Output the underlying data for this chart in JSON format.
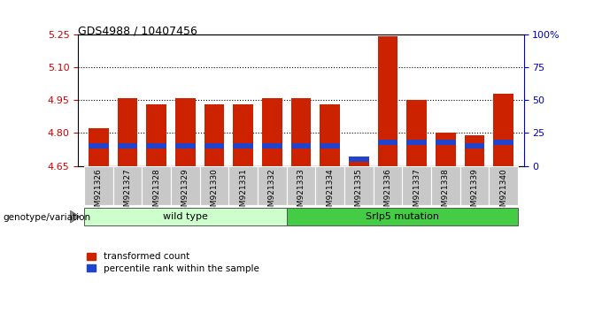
{
  "title": "GDS4988 / 10407456",
  "samples": [
    "GSM921326",
    "GSM921327",
    "GSM921328",
    "GSM921329",
    "GSM921330",
    "GSM921331",
    "GSM921332",
    "GSM921333",
    "GSM921334",
    "GSM921335",
    "GSM921336",
    "GSM921337",
    "GSM921338",
    "GSM921339",
    "GSM921340"
  ],
  "transformed_count": [
    4.82,
    4.96,
    4.93,
    4.96,
    4.93,
    4.93,
    4.96,
    4.96,
    4.93,
    4.68,
    5.24,
    4.95,
    4.8,
    4.79,
    4.98
  ],
  "percentile_rank": [
    15,
    15,
    15,
    15,
    15,
    15,
    15,
    15,
    15,
    5,
    18,
    18,
    18,
    15,
    18
  ],
  "y_min": 4.65,
  "y_max": 5.25,
  "y_ticks": [
    4.65,
    4.8,
    4.95,
    5.1,
    5.25
  ],
  "right_ticks": [
    0,
    25,
    50,
    75,
    100
  ],
  "right_labels": [
    "0",
    "25",
    "50",
    "75",
    "100%"
  ],
  "wild_type_range": [
    0,
    6
  ],
  "mutation_range": [
    7,
    14
  ],
  "wild_type_label": "wild type",
  "mutation_label": "Srlp5 mutation",
  "genotype_label": "genotype/variation",
  "legend_red_label": "transformed count",
  "legend_blue_label": "percentile rank within the sample",
  "bar_color_red": "#cc2200",
  "bar_color_blue": "#2244cc",
  "bar_width": 0.7,
  "bg_color_wild": "#ccffcc",
  "bg_color_mutation": "#44cc44",
  "axis_label_color_left": "#cc0000",
  "axis_label_color_right": "#0000cc",
  "gray_box_color": "#c8c8c8"
}
